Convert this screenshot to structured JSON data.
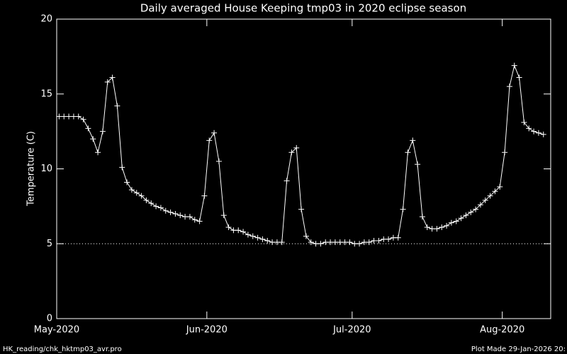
{
  "chart_data": {
    "type": "line",
    "title": "Daily averaged House Keeping tmp03 in 2020 eclipse season",
    "y_label": "Temperature (C)",
    "x": [
      0.5,
      1.5,
      2.5,
      3.5,
      4.5,
      5.5,
      6.5,
      7.5,
      8.5,
      9.5,
      10.5,
      11.5,
      12.5,
      13.5,
      14.5,
      15.5,
      16.5,
      17.5,
      18.5,
      19.5,
      20.5,
      21.5,
      22.5,
      23.5,
      24.5,
      25.5,
      26.5,
      27.5,
      28.5,
      29.5,
      30.5,
      31.5,
      32.5,
      33.5,
      34.5,
      35.5,
      36.5,
      37.5,
      38.5,
      39.5,
      40.5,
      41.5,
      42.5,
      43.5,
      44.5,
      45.5,
      46.5,
      47.5,
      48.5,
      49.5,
      50.5,
      51.5,
      52.5,
      53.5,
      54.5,
      55.5,
      56.5,
      57.5,
      58.5,
      59.5,
      60.5,
      61.5,
      62.5,
      63.5,
      64.5,
      65.5,
      66.5,
      67.5,
      68.5,
      69.5,
      70.5,
      71.5,
      72.5,
      73.5,
      74.5,
      75.5,
      76.5,
      77.5,
      78.5,
      79.5,
      80.5,
      81.5,
      82.5,
      83.5,
      84.5,
      85.5,
      86.5,
      87.5,
      88.5,
      89.5,
      90.5,
      91.5,
      92.5,
      93.5,
      94.5,
      95.5,
      96.5,
      97.5,
      98.5,
      99.5,
      100.5
    ],
    "series": [
      {
        "color": "#ffffff",
        "values": [
          13.5,
          13.5,
          13.5,
          13.5,
          13.5,
          13.3,
          12.7,
          12.0,
          11.1,
          12.5,
          15.8,
          16.1,
          14.2,
          10.1,
          9.1,
          8.6,
          8.4,
          8.2,
          7.9,
          7.7,
          7.5,
          7.4,
          7.2,
          7.1,
          7.0,
          6.9,
          6.8,
          6.8,
          6.6,
          6.5,
          8.2,
          11.9,
          12.4,
          10.5,
          6.9,
          6.1,
          5.9,
          5.9,
          5.8,
          5.6,
          5.5,
          5.4,
          5.3,
          5.2,
          5.1,
          5.1,
          5.1,
          9.2,
          11.1,
          11.4,
          7.3,
          5.5,
          5.1,
          5.0,
          5.0,
          5.1,
          5.1,
          5.1,
          5.1,
          5.1,
          5.1,
          5.0,
          5.0,
          5.1,
          5.1,
          5.2,
          5.2,
          5.3,
          5.3,
          5.4,
          5.4,
          7.3,
          11.1,
          11.9,
          10.3,
          6.8,
          6.1,
          6.0,
          6.0,
          6.1,
          6.2,
          6.4,
          6.5,
          6.7,
          6.9,
          7.1,
          7.3,
          7.6,
          7.9,
          8.2,
          8.5,
          8.8,
          11.1,
          15.5,
          16.9,
          16.1,
          13.1,
          12.7,
          12.5,
          12.4,
          12.3
        ]
      }
    ],
    "xlim": [
      0,
      102
    ],
    "xticks": [
      {
        "value": 0,
        "label": "May-2020"
      },
      {
        "value": 31,
        "label": "Jun-2020"
      },
      {
        "value": 61,
        "label": "Jul-2020"
      },
      {
        "value": 92,
        "label": "Aug-2020"
      }
    ],
    "ylim": [
      0,
      20
    ],
    "yticks": [
      0,
      5,
      10,
      15,
      20
    ],
    "reference_line": 5,
    "marker": "plus"
  },
  "footer": {
    "left": "HK_reading/chk_hktmp03_avr.pro",
    "right": "Plot Made 29-Jan-2026 20:"
  }
}
